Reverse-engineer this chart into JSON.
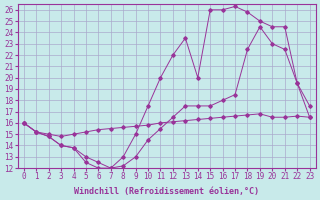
{
  "xlabel": "Windchill (Refroidissement éolien,°C)",
  "ylabel": "",
  "bg_color": "#c8eaea",
  "grid_color": "#aaaacc",
  "line_color": "#993399",
  "xlim": [
    -0.5,
    23.5
  ],
  "ylim": [
    12,
    26.5
  ],
  "xticks": [
    0,
    1,
    2,
    3,
    4,
    5,
    6,
    7,
    8,
    9,
    10,
    11,
    12,
    13,
    14,
    15,
    16,
    17,
    18,
    19,
    20,
    21,
    22,
    23
  ],
  "yticks": [
    12,
    13,
    14,
    15,
    16,
    17,
    18,
    19,
    20,
    21,
    22,
    23,
    24,
    25,
    26
  ],
  "line1_x": [
    0,
    1,
    2,
    3,
    4,
    5,
    6,
    7,
    8,
    9,
    10,
    11,
    12,
    13,
    14,
    15,
    16,
    17,
    18,
    19,
    20,
    21,
    22,
    23
  ],
  "line1_y": [
    16.0,
    15.2,
    15.0,
    14.8,
    15.0,
    15.2,
    15.4,
    15.5,
    15.6,
    15.7,
    15.8,
    16.0,
    16.1,
    16.2,
    16.3,
    16.4,
    16.5,
    16.6,
    16.7,
    16.8,
    16.5,
    16.5,
    16.6,
    16.5
  ],
  "line2_x": [
    0,
    1,
    2,
    3,
    4,
    5,
    6,
    7,
    8,
    9,
    10,
    11,
    12,
    13,
    14,
    15,
    16,
    17,
    18,
    19,
    20,
    21,
    22,
    23
  ],
  "line2_y": [
    16.0,
    15.2,
    14.8,
    14.0,
    13.8,
    13.0,
    12.5,
    12.0,
    12.2,
    13.0,
    14.5,
    15.5,
    16.5,
    17.5,
    17.5,
    17.5,
    18.0,
    18.5,
    22.5,
    24.5,
    23.0,
    22.5,
    19.5,
    16.5
  ],
  "line3_x": [
    0,
    1,
    2,
    3,
    4,
    5,
    6,
    7,
    8,
    9,
    10,
    11,
    12,
    13,
    14,
    15,
    16,
    17,
    18,
    19,
    20,
    21,
    22,
    23
  ],
  "line3_y": [
    16.0,
    15.2,
    14.8,
    14.0,
    13.8,
    12.5,
    12.0,
    12.0,
    13.0,
    15.0,
    17.5,
    20.0,
    22.0,
    23.5,
    20.0,
    26.0,
    26.0,
    26.3,
    25.8,
    25.0,
    24.5,
    24.5,
    19.5,
    17.5
  ],
  "label_fontsize": 6,
  "tick_fontsize": 5.5
}
